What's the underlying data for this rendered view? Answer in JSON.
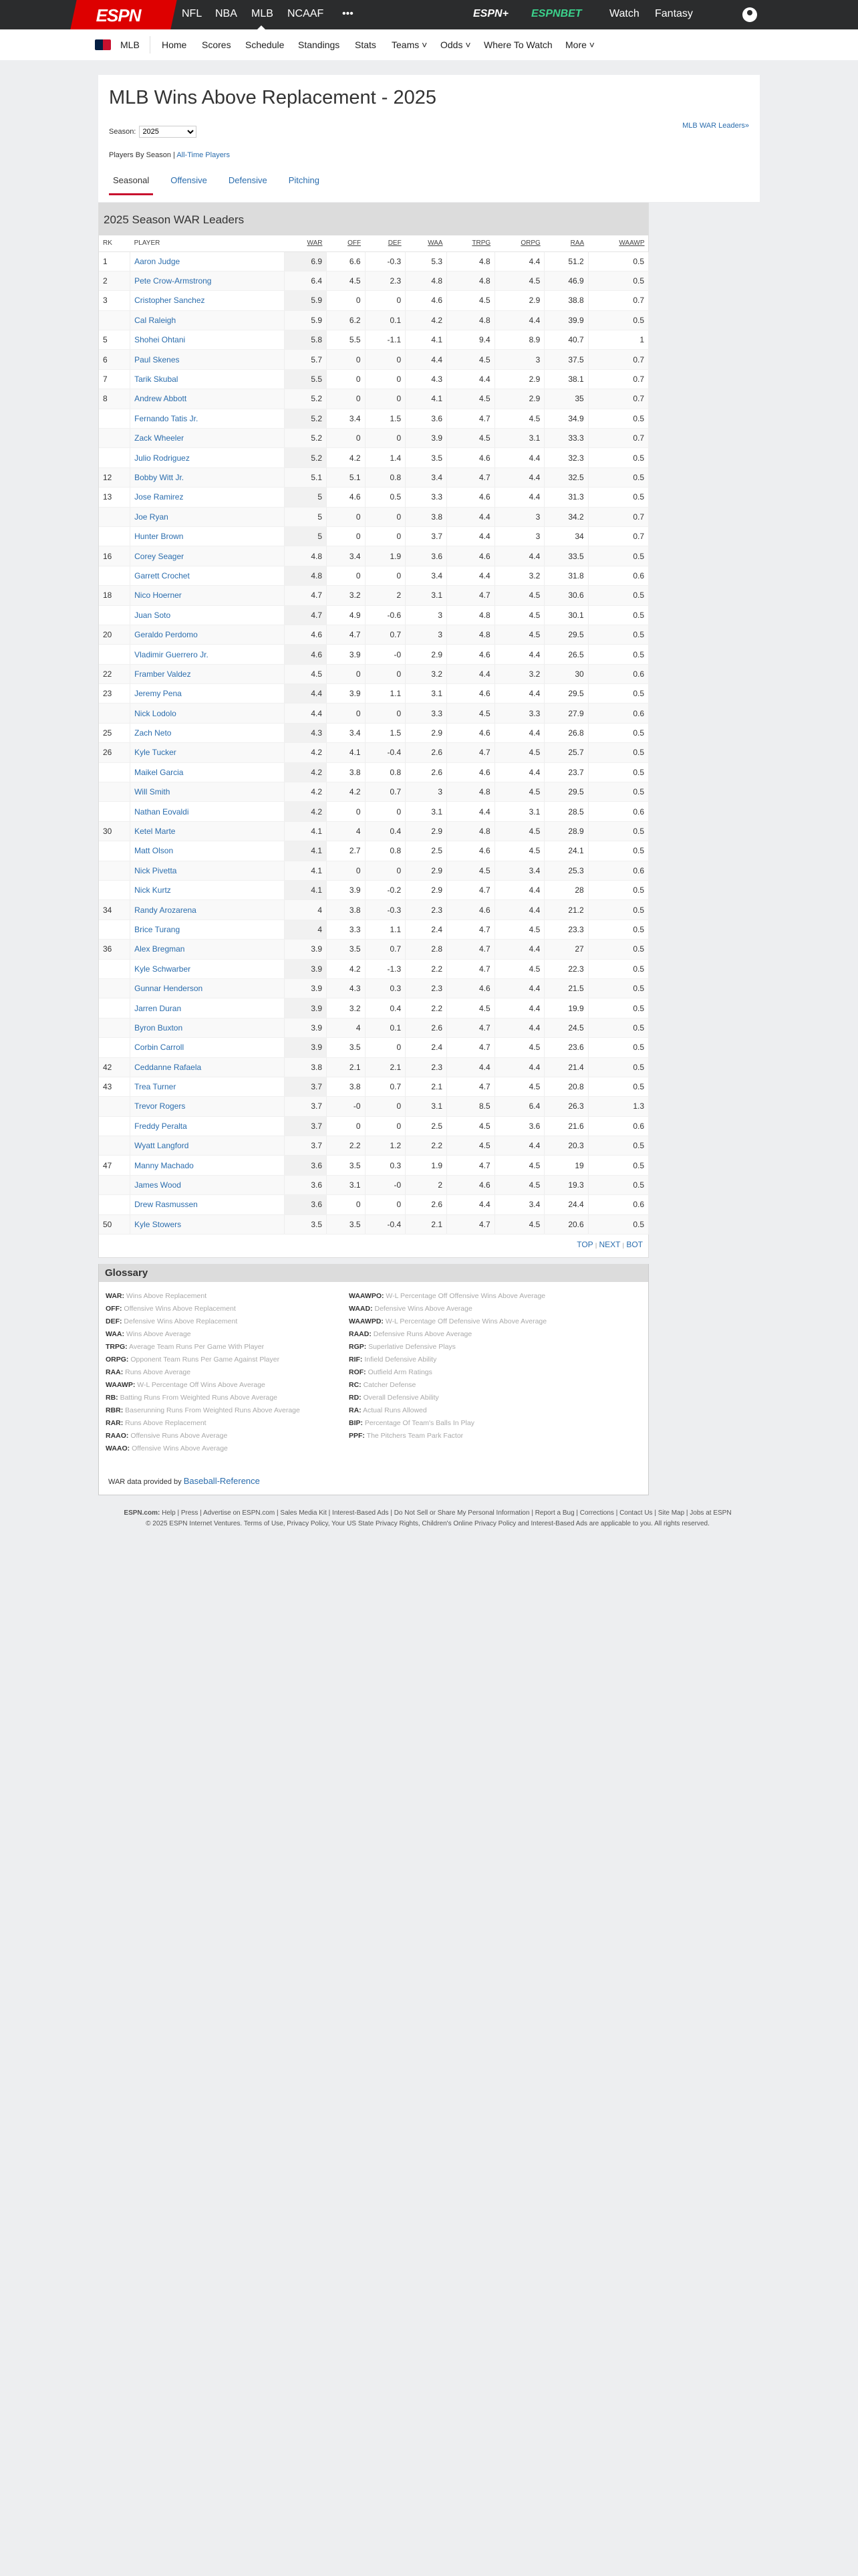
{
  "topnav": {
    "logo": "ESPN",
    "items": [
      "NFL",
      "NBA",
      "MLB",
      "NCAAF",
      "•••"
    ],
    "right": [
      "ESPN+",
      "ESPNBET",
      "Watch",
      "Fantasy"
    ]
  },
  "subnav": {
    "league": "MLB",
    "items": [
      "Home",
      "Scores",
      "Schedule",
      "Standings",
      "Stats",
      "Teams ˅",
      "Odds ˅",
      "Where To Watch",
      "More ˅"
    ]
  },
  "page": {
    "title": "MLB Wins Above Replacement - 2025",
    "season_label": "Season:",
    "season_value": "2025",
    "leaders_link": "MLB WAR Leaders»",
    "players_by_season": "Players By Season |",
    "all_time": "All-Time Players",
    "tabs": [
      "Seasonal",
      "Offensive",
      "Defensive",
      "Pitching"
    ],
    "active_tab": "Seasonal"
  },
  "table": {
    "title": "2025 Season WAR Leaders",
    "columns": [
      "RK",
      "PLAYER",
      "WAR",
      "OFF",
      "DEF",
      "WAA",
      "TRPG",
      "ORPG",
      "RAA",
      "WAAWP"
    ],
    "rows": [
      [
        "1",
        "Aaron Judge",
        "6.9",
        "6.6",
        "-0.3",
        "5.3",
        "4.8",
        "4.4",
        "51.2",
        "0.5"
      ],
      [
        "2",
        "Pete Crow-Armstrong",
        "6.4",
        "4.5",
        "2.3",
        "4.8",
        "4.8",
        "4.5",
        "46.9",
        "0.5"
      ],
      [
        "3",
        "Cristopher Sanchez",
        "5.9",
        "0",
        "0",
        "4.6",
        "4.5",
        "2.9",
        "38.8",
        "0.7"
      ],
      [
        "",
        "Cal Raleigh",
        "5.9",
        "6.2",
        "0.1",
        "4.2",
        "4.8",
        "4.4",
        "39.9",
        "0.5"
      ],
      [
        "5",
        "Shohei Ohtani",
        "5.8",
        "5.5",
        "-1.1",
        "4.1",
        "9.4",
        "8.9",
        "40.7",
        "1"
      ],
      [
        "6",
        "Paul Skenes",
        "5.7",
        "0",
        "0",
        "4.4",
        "4.5",
        "3",
        "37.5",
        "0.7"
      ],
      [
        "7",
        "Tarik Skubal",
        "5.5",
        "0",
        "0",
        "4.3",
        "4.4",
        "2.9",
        "38.1",
        "0.7"
      ],
      [
        "8",
        "Andrew Abbott",
        "5.2",
        "0",
        "0",
        "4.1",
        "4.5",
        "2.9",
        "35",
        "0.7"
      ],
      [
        "",
        "Fernando Tatis Jr.",
        "5.2",
        "3.4",
        "1.5",
        "3.6",
        "4.7",
        "4.5",
        "34.9",
        "0.5"
      ],
      [
        "",
        "Zack Wheeler",
        "5.2",
        "0",
        "0",
        "3.9",
        "4.5",
        "3.1",
        "33.3",
        "0.7"
      ],
      [
        "",
        "Julio Rodriguez",
        "5.2",
        "4.2",
        "1.4",
        "3.5",
        "4.6",
        "4.4",
        "32.3",
        "0.5"
      ],
      [
        "12",
        "Bobby Witt Jr.",
        "5.1",
        "5.1",
        "0.8",
        "3.4",
        "4.7",
        "4.4",
        "32.5",
        "0.5"
      ],
      [
        "13",
        "Jose Ramirez",
        "5",
        "4.6",
        "0.5",
        "3.3",
        "4.6",
        "4.4",
        "31.3",
        "0.5"
      ],
      [
        "",
        "Joe Ryan",
        "5",
        "0",
        "0",
        "3.8",
        "4.4",
        "3",
        "34.2",
        "0.7"
      ],
      [
        "",
        "Hunter Brown",
        "5",
        "0",
        "0",
        "3.7",
        "4.4",
        "3",
        "34",
        "0.7"
      ],
      [
        "16",
        "Corey Seager",
        "4.8",
        "3.4",
        "1.9",
        "3.6",
        "4.6",
        "4.4",
        "33.5",
        "0.5"
      ],
      [
        "",
        "Garrett Crochet",
        "4.8",
        "0",
        "0",
        "3.4",
        "4.4",
        "3.2",
        "31.8",
        "0.6"
      ],
      [
        "18",
        "Nico Hoerner",
        "4.7",
        "3.2",
        "2",
        "3.1",
        "4.7",
        "4.5",
        "30.6",
        "0.5"
      ],
      [
        "",
        "Juan Soto",
        "4.7",
        "4.9",
        "-0.6",
        "3",
        "4.8",
        "4.5",
        "30.1",
        "0.5"
      ],
      [
        "20",
        "Geraldo Perdomo",
        "4.6",
        "4.7",
        "0.7",
        "3",
        "4.8",
        "4.5",
        "29.5",
        "0.5"
      ],
      [
        "",
        "Vladimir Guerrero Jr.",
        "4.6",
        "3.9",
        "-0",
        "2.9",
        "4.6",
        "4.4",
        "26.5",
        "0.5"
      ],
      [
        "22",
        "Framber Valdez",
        "4.5",
        "0",
        "0",
        "3.2",
        "4.4",
        "3.2",
        "30",
        "0.6"
      ],
      [
        "23",
        "Jeremy Pena",
        "4.4",
        "3.9",
        "1.1",
        "3.1",
        "4.6",
        "4.4",
        "29.5",
        "0.5"
      ],
      [
        "",
        "Nick Lodolo",
        "4.4",
        "0",
        "0",
        "3.3",
        "4.5",
        "3.3",
        "27.9",
        "0.6"
      ],
      [
        "25",
        "Zach Neto",
        "4.3",
        "3.4",
        "1.5",
        "2.9",
        "4.6",
        "4.4",
        "26.8",
        "0.5"
      ],
      [
        "26",
        "Kyle Tucker",
        "4.2",
        "4.1",
        "-0.4",
        "2.6",
        "4.7",
        "4.5",
        "25.7",
        "0.5"
      ],
      [
        "",
        "Maikel Garcia",
        "4.2",
        "3.8",
        "0.8",
        "2.6",
        "4.6",
        "4.4",
        "23.7",
        "0.5"
      ],
      [
        "",
        "Will Smith",
        "4.2",
        "4.2",
        "0.7",
        "3",
        "4.8",
        "4.5",
        "29.5",
        "0.5"
      ],
      [
        "",
        "Nathan Eovaldi",
        "4.2",
        "0",
        "0",
        "3.1",
        "4.4",
        "3.1",
        "28.5",
        "0.6"
      ],
      [
        "30",
        "Ketel Marte",
        "4.1",
        "4",
        "0.4",
        "2.9",
        "4.8",
        "4.5",
        "28.9",
        "0.5"
      ],
      [
        "",
        "Matt Olson",
        "4.1",
        "2.7",
        "0.8",
        "2.5",
        "4.6",
        "4.5",
        "24.1",
        "0.5"
      ],
      [
        "",
        "Nick Pivetta",
        "4.1",
        "0",
        "0",
        "2.9",
        "4.5",
        "3.4",
        "25.3",
        "0.6"
      ],
      [
        "",
        "Nick Kurtz",
        "4.1",
        "3.9",
        "-0.2",
        "2.9",
        "4.7",
        "4.4",
        "28",
        "0.5"
      ],
      [
        "34",
        "Randy Arozarena",
        "4",
        "3.8",
        "-0.3",
        "2.3",
        "4.6",
        "4.4",
        "21.2",
        "0.5"
      ],
      [
        "",
        "Brice Turang",
        "4",
        "3.3",
        "1.1",
        "2.4",
        "4.7",
        "4.5",
        "23.3",
        "0.5"
      ],
      [
        "36",
        "Alex Bregman",
        "3.9",
        "3.5",
        "0.7",
        "2.8",
        "4.7",
        "4.4",
        "27",
        "0.5"
      ],
      [
        "",
        "Kyle Schwarber",
        "3.9",
        "4.2",
        "-1.3",
        "2.2",
        "4.7",
        "4.5",
        "22.3",
        "0.5"
      ],
      [
        "",
        "Gunnar Henderson",
        "3.9",
        "4.3",
        "0.3",
        "2.3",
        "4.6",
        "4.4",
        "21.5",
        "0.5"
      ],
      [
        "",
        "Jarren Duran",
        "3.9",
        "3.2",
        "0.4",
        "2.2",
        "4.5",
        "4.4",
        "19.9",
        "0.5"
      ],
      [
        "",
        "Byron Buxton",
        "3.9",
        "4",
        "0.1",
        "2.6",
        "4.7",
        "4.4",
        "24.5",
        "0.5"
      ],
      [
        "",
        "Corbin Carroll",
        "3.9",
        "3.5",
        "0",
        "2.4",
        "4.7",
        "4.5",
        "23.6",
        "0.5"
      ],
      [
        "42",
        "Ceddanne Rafaela",
        "3.8",
        "2.1",
        "2.1",
        "2.3",
        "4.4",
        "4.4",
        "21.4",
        "0.5"
      ],
      [
        "43",
        "Trea Turner",
        "3.7",
        "3.8",
        "0.7",
        "2.1",
        "4.7",
        "4.5",
        "20.8",
        "0.5"
      ],
      [
        "",
        "Trevor Rogers",
        "3.7",
        "-0",
        "0",
        "3.1",
        "8.5",
        "6.4",
        "26.3",
        "1.3"
      ],
      [
        "",
        "Freddy Peralta",
        "3.7",
        "0",
        "0",
        "2.5",
        "4.5",
        "3.6",
        "21.6",
        "0.6"
      ],
      [
        "",
        "Wyatt Langford",
        "3.7",
        "2.2",
        "1.2",
        "2.2",
        "4.5",
        "4.4",
        "20.3",
        "0.5"
      ],
      [
        "47",
        "Manny Machado",
        "3.6",
        "3.5",
        "0.3",
        "1.9",
        "4.7",
        "4.5",
        "19",
        "0.5"
      ],
      [
        "",
        "James Wood",
        "3.6",
        "3.1",
        "-0",
        "2",
        "4.6",
        "4.5",
        "19.3",
        "0.5"
      ],
      [
        "",
        "Drew Rasmussen",
        "3.6",
        "0",
        "0",
        "2.6",
        "4.4",
        "3.4",
        "24.4",
        "0.6"
      ],
      [
        "50",
        "Kyle Stowers",
        "3.5",
        "3.5",
        "-0.4",
        "2.1",
        "4.7",
        "4.5",
        "20.6",
        "0.5"
      ]
    ],
    "pager": {
      "top": "TOP",
      "next": "NEXT",
      "bot": "BOT",
      "sep": "|"
    }
  },
  "glossary": {
    "title": "Glossary",
    "left": [
      [
        "WAR:",
        "Wins Above Replacement"
      ],
      [
        "OFF:",
        "Offensive Wins Above Replacement"
      ],
      [
        "DEF:",
        "Defensive Wins Above Replacement"
      ],
      [
        "WAA:",
        "Wins Above Average"
      ],
      [
        "TRPG:",
        "Average Team Runs Per Game With Player"
      ],
      [
        "ORPG:",
        "Opponent Team Runs Per Game Against Player"
      ],
      [
        "RAA:",
        "Runs Above Average"
      ],
      [
        "WAAWP:",
        "W-L Percentage Off Wins Above Average"
      ],
      [
        "RB:",
        "Batting Runs From Weighted Runs Above Average"
      ],
      [
        "RBR:",
        "Baserunning Runs From Weighted Runs Above Average"
      ],
      [
        "RAR:",
        "Runs Above Replacement"
      ],
      [
        "RAAO:",
        "Offensive Runs Above Average"
      ],
      [
        "WAAO:",
        "Offensive Wins Above Average"
      ]
    ],
    "right": [
      [
        "WAAWPO:",
        "W-L Percentage Off Offensive Wins Above Average"
      ],
      [
        "WAAD:",
        "Defensive Wins Above Average"
      ],
      [
        "WAAWPD:",
        "W-L Percentage Off Defensive Wins Above Average"
      ],
      [
        "RAAD:",
        "Defensive Runs Above Average"
      ],
      [
        "RGP:",
        "Superlative Defensive Plays"
      ],
      [
        "RIF:",
        "Infield Defensive Ability"
      ],
      [
        "ROF:",
        "Outfield Arm Ratings"
      ],
      [
        "RC:",
        "Catcher Defense"
      ],
      [
        "RD:",
        "Overall Defensive Ability"
      ],
      [
        "RA:",
        "Actual Runs Allowed"
      ],
      [
        "BIP:",
        "Percentage Of Team's Balls In Play"
      ],
      [
        "PPF:",
        "The Pitchers Team Park Factor"
      ]
    ],
    "credit_prefix": "WAR data provided by",
    "credit_link": "Baseball-Reference"
  },
  "footer": {
    "label": "ESPN.com:",
    "links": "Help | Press | Advertise on ESPN.com | Sales Media Kit | Interest-Based Ads | Do Not Sell or Share My Personal Information | Report a Bug | Corrections | Contact Us | Site Map | Jobs at ESPN",
    "copyright": "© 2025 ESPN Internet Ventures. Terms of Use, Privacy Policy, Your US State Privacy Rights, Children's Online Privacy Policy and Interest-Based Ads are applicable to you. All rights reserved."
  },
  "colors": {
    "brand": "#dd0000",
    "link": "#2b6dad",
    "tab_underline": "#c8102e",
    "topbar": "#2b2c2d"
  }
}
